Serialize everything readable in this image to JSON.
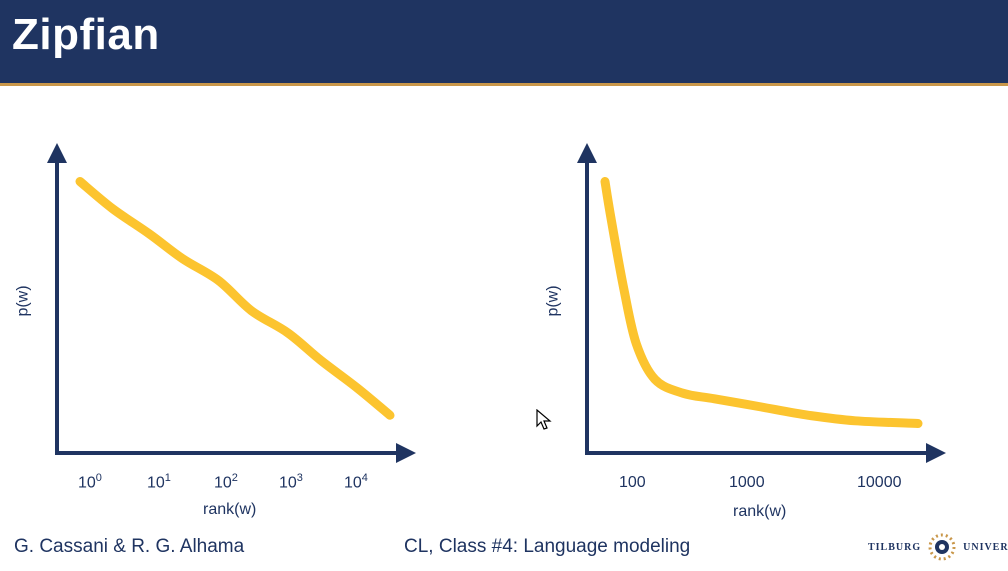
{
  "slide": {
    "title": "Zipfian",
    "footer_left": "G. Cassani & R. G. Alhama",
    "footer_center": "CL, Class #4: Language modeling",
    "logo_left_word": "Tilburg",
    "logo_right_word": "University"
  },
  "colors": {
    "header": "#1f3461",
    "accent": "#c9974a",
    "curve": "#fcc42f",
    "axis": "#1f3461"
  },
  "chart_data": [
    {
      "type": "line",
      "scale": "log-log",
      "xlabel": "rank(w)",
      "ylabel": "p(w)",
      "x_ticks": [
        {
          "base": "10",
          "exp": "0"
        },
        {
          "base": "10",
          "exp": "1"
        },
        {
          "base": "10",
          "exp": "2"
        },
        {
          "base": "10",
          "exp": "3"
        },
        {
          "base": "10",
          "exp": "4"
        }
      ],
      "series": [
        {
          "x": [
            1,
            3,
            10,
            30,
            100,
            300,
            1000,
            3000,
            10000,
            30000
          ],
          "y": [
            0.94,
            0.84,
            0.75,
            0.66,
            0.58,
            0.47,
            0.39,
            0.29,
            0.19,
            0.09
          ]
        }
      ]
    },
    {
      "type": "line",
      "scale": "linear",
      "xlabel": "rank(w)",
      "ylabel": "p(w)",
      "x_ticks": [
        "100",
        "1000",
        "10000"
      ],
      "series": [
        {
          "x": [
            0.0,
            0.02,
            0.06,
            0.1,
            0.16,
            0.25,
            0.35,
            0.5,
            0.65,
            0.8,
            1.0
          ],
          "y": [
            0.94,
            0.8,
            0.55,
            0.35,
            0.22,
            0.17,
            0.15,
            0.12,
            0.09,
            0.07,
            0.06
          ]
        }
      ]
    }
  ]
}
